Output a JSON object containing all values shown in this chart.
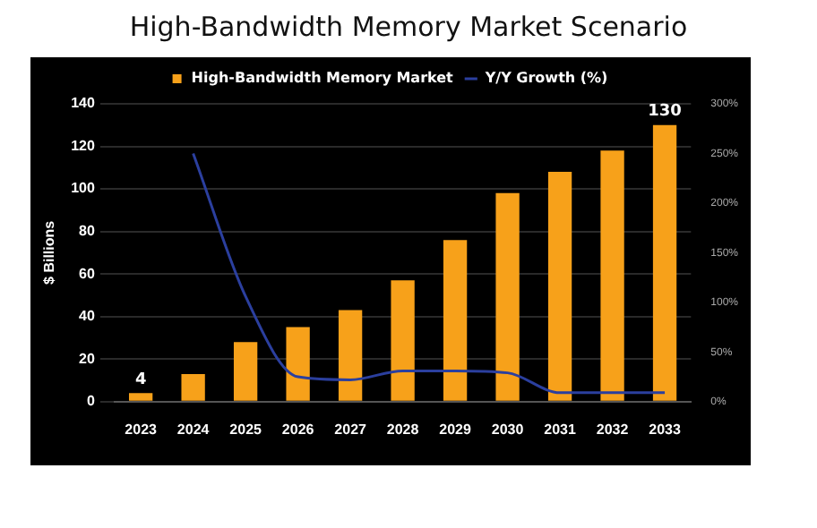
{
  "chart_data": {
    "type": "bar",
    "title": "High-Bandwidth Memory Market Scenario",
    "ylabel": "$ Billions",
    "categories": [
      "2023",
      "2024",
      "2025",
      "2026",
      "2027",
      "2028",
      "2029",
      "2030",
      "2031",
      "2032",
      "2033"
    ],
    "series": [
      {
        "name": "High-Bandwidth Memory Market",
        "color": "#f7a11a",
        "values": [
          4,
          13,
          28,
          35,
          43,
          57,
          76,
          98,
          108,
          118,
          130
        ],
        "value_labels": [
          "4",
          null,
          null,
          null,
          null,
          null,
          null,
          null,
          null,
          null,
          "130"
        ]
      },
      {
        "name": "Y/Y Growth (%)",
        "type": "line",
        "axis": "y2",
        "color": "#2b3f9e",
        "values": [
          null,
          250,
          106,
          25,
          22,
          31,
          31,
          29,
          9,
          9,
          9
        ]
      }
    ],
    "ylim": [
      0,
      140
    ],
    "yticks": [
      0,
      20,
      40,
      60,
      80,
      100,
      120,
      140
    ],
    "y2lim": [
      0,
      300
    ],
    "y2ticks": [
      {
        "value": 0,
        "label": "0%"
      },
      {
        "value": 50,
        "label": "50%"
      },
      {
        "value": 100,
        "label": "100%"
      },
      {
        "value": 150,
        "label": "150%"
      },
      {
        "value": 200,
        "label": "200%"
      },
      {
        "value": 250,
        "label": "250%"
      },
      {
        "value": 300,
        "label": "300%"
      }
    ],
    "grid": "y",
    "legend": "top",
    "marker": "none",
    "line_style": "solid"
  }
}
